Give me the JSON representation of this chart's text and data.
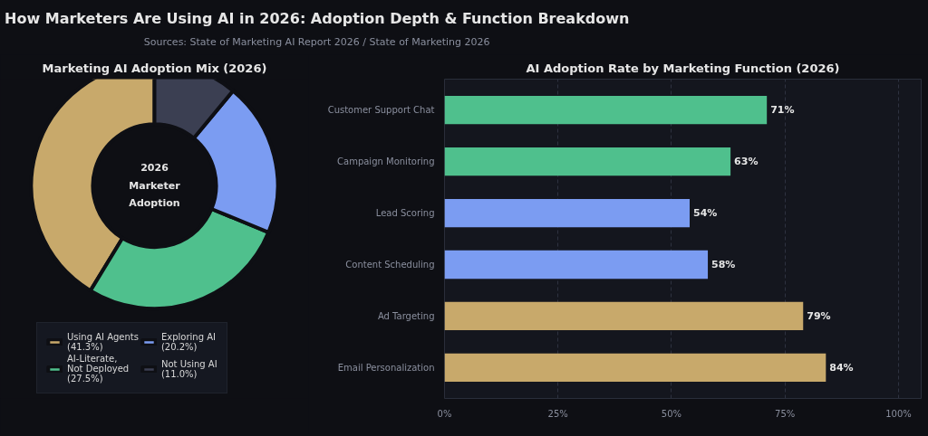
{
  "chart_data": [
    {
      "type": "other",
      "title": "How Marketers Are Using AI in 2026: Adoption Depth & Function Breakdown",
      "subtitle": "Sources: State of Marketing AI Report 2026 / State of Marketing 2026"
    },
    {
      "type": "donut",
      "title": "Marketing AI Adoption Mix (2026)",
      "categories": [
        "Using AI Agents\n(41.3%)",
        "AI-Literate,\nNot Deployed\n(27.5%)",
        "Exploring AI\n(20.2%)",
        "Not Using AI\n(11.0%)"
      ],
      "values": [
        41.3,
        27.5,
        20.2,
        11.0
      ],
      "colors": [
        "#c8a96b",
        "#4fc08d",
        "#7b9cf2",
        "#3b3f52"
      ],
      "annotations": [
        "2026\nMarketer\nAdoption"
      ],
      "legend": "bottom"
    },
    {
      "type": "bar",
      "orientation": "horizontal",
      "title": "AI Adoption Rate by Marketing Function (2026)",
      "categories": [
        "Customer Support Chat",
        "Campaign Monitoring",
        "Lead Scoring",
        "Content Scheduling",
        "Ad Targeting",
        "Email Personalization"
      ],
      "values": [
        71,
        63,
        54,
        58,
        79,
        84
      ],
      "colors": [
        "#4fc08d",
        "#4fc08d",
        "#7b9cf2",
        "#7b9cf2",
        "#c8a96b",
        "#c8a96b"
      ],
      "value_labels": [
        "71%",
        "63%",
        "54%",
        "58%",
        "79%",
        "84%"
      ],
      "xlim": [
        0,
        105
      ],
      "xticks": [
        {
          "value": 0,
          "label": "0%"
        },
        {
          "value": 25,
          "label": "25%"
        },
        {
          "value": 50,
          "label": "50%"
        },
        {
          "value": 75,
          "label": "75%"
        },
        {
          "value": 100,
          "label": "100%"
        }
      ],
      "grid": "x"
    }
  ]
}
